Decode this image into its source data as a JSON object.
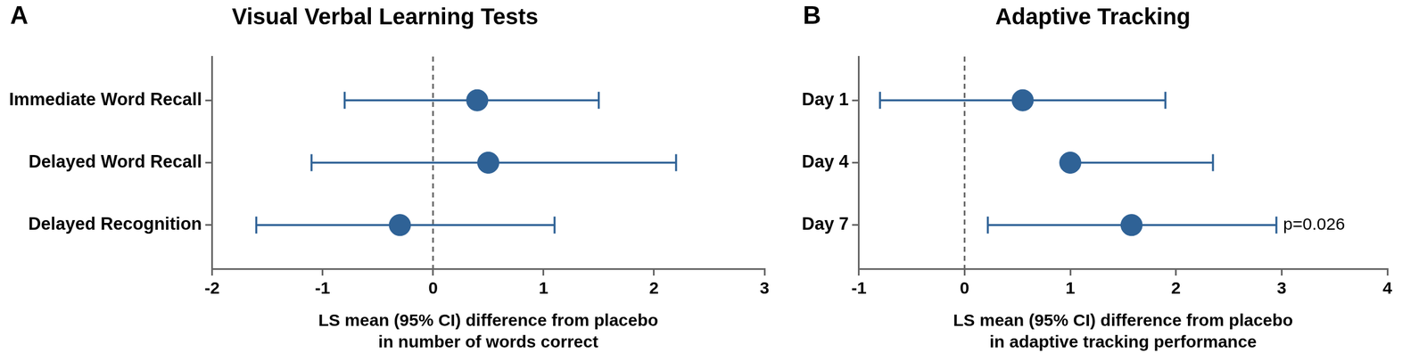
{
  "chart_data": [
    {
      "type": "forest",
      "panel": "A",
      "title": "Visual Verbal Learning Tests",
      "categories": [
        "Immediate Word Recall",
        "Delayed Word Recall",
        "Delayed Recognition"
      ],
      "values": [
        0.4,
        0.5,
        -0.3
      ],
      "ci_lower": [
        -0.8,
        -1.1,
        -1.6
      ],
      "ci_upper": [
        1.5,
        2.2,
        1.1
      ],
      "x_label": "LS mean (95% CI) difference from placebo\nin number of words correct",
      "xlim": [
        -2,
        3
      ],
      "xticks": [
        -2,
        -1,
        0,
        1,
        2,
        3
      ],
      "reference_line": 0,
      "color": "#2f6296",
      "grid": false
    },
    {
      "type": "forest",
      "panel": "B",
      "title": "Adaptive Tracking",
      "categories": [
        "Day 1",
        "Day 4",
        "Day 7"
      ],
      "values": [
        0.55,
        1.0,
        1.58
      ],
      "ci_lower": [
        -0.8,
        1.0,
        0.22
      ],
      "ci_upper": [
        1.9,
        2.35,
        2.95
      ],
      "x_label": "LS mean (95% CI) difference from placebo\nin adaptive tracking performance",
      "xlim": [
        -1,
        4
      ],
      "xticks": [
        -1,
        0,
        1,
        2,
        3,
        4
      ],
      "reference_line": 0,
      "annotations": [
        {
          "category": "Day 7",
          "text": "p=0.026"
        }
      ],
      "color": "#2f6296",
      "grid": false
    }
  ]
}
